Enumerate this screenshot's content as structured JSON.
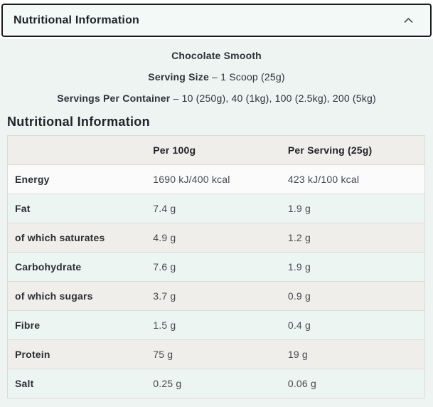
{
  "colors": {
    "panel_bg": "#edf4f2",
    "accordion_bg": "#f3f9f7",
    "accordion_border": "#1a1c20",
    "title_color": "#212329",
    "text_color": "#2f3237",
    "value_color": "#46494f",
    "header_row_bg": "#f0eeeb",
    "table_border": "#dcdad7",
    "row_white": "#fafbfa",
    "row_mint": "#ecf5f2",
    "row_gray": "#f0eeeb"
  },
  "accordion": {
    "title": "Nutritional Information",
    "state_icon": "chevron-up"
  },
  "product": {
    "flavour": "Chocolate Smooth",
    "separator": "–",
    "serving_size": {
      "label": "Serving Size",
      "value": "1 Scoop (25g)"
    },
    "servings_per_container": {
      "label": "Servings Per Container",
      "value": "10 (250g), 40 (1kg), 100 (2.5kg), 200 (5kg)"
    }
  },
  "table": {
    "title": "Nutritional Information",
    "columns": [
      "",
      "Per 100g",
      "Per Serving (25g)"
    ],
    "rows": [
      {
        "label": "Energy",
        "per_100g": "1690 kJ/400 kcal",
        "per_serving": "423 kJ/100 kcal",
        "bg": "#fafbfa"
      },
      {
        "label": "Fat",
        "per_100g": "7.4 g",
        "per_serving": "1.9 g",
        "bg": "#ecf5f2"
      },
      {
        "label": "of which saturates",
        "per_100g": "4.9 g",
        "per_serving": "1.2 g",
        "bg": "#f0eeeb"
      },
      {
        "label": "Carbohydrate",
        "per_100g": "7.6 g",
        "per_serving": "1.9 g",
        "bg": "#ecf5f2"
      },
      {
        "label": "of which sugars",
        "per_100g": "3.7 g",
        "per_serving": "0.9 g",
        "bg": "#f0eeeb"
      },
      {
        "label": "Fibre",
        "per_100g": "1.5 g",
        "per_serving": "0.4 g",
        "bg": "#ecf5f2"
      },
      {
        "label": "Protein",
        "per_100g": "75 g",
        "per_serving": "19 g",
        "bg": "#f0eeeb"
      },
      {
        "label": "Salt",
        "per_100g": "0.25 g",
        "per_serving": "0.06 g",
        "bg": "#ecf5f2"
      }
    ]
  }
}
